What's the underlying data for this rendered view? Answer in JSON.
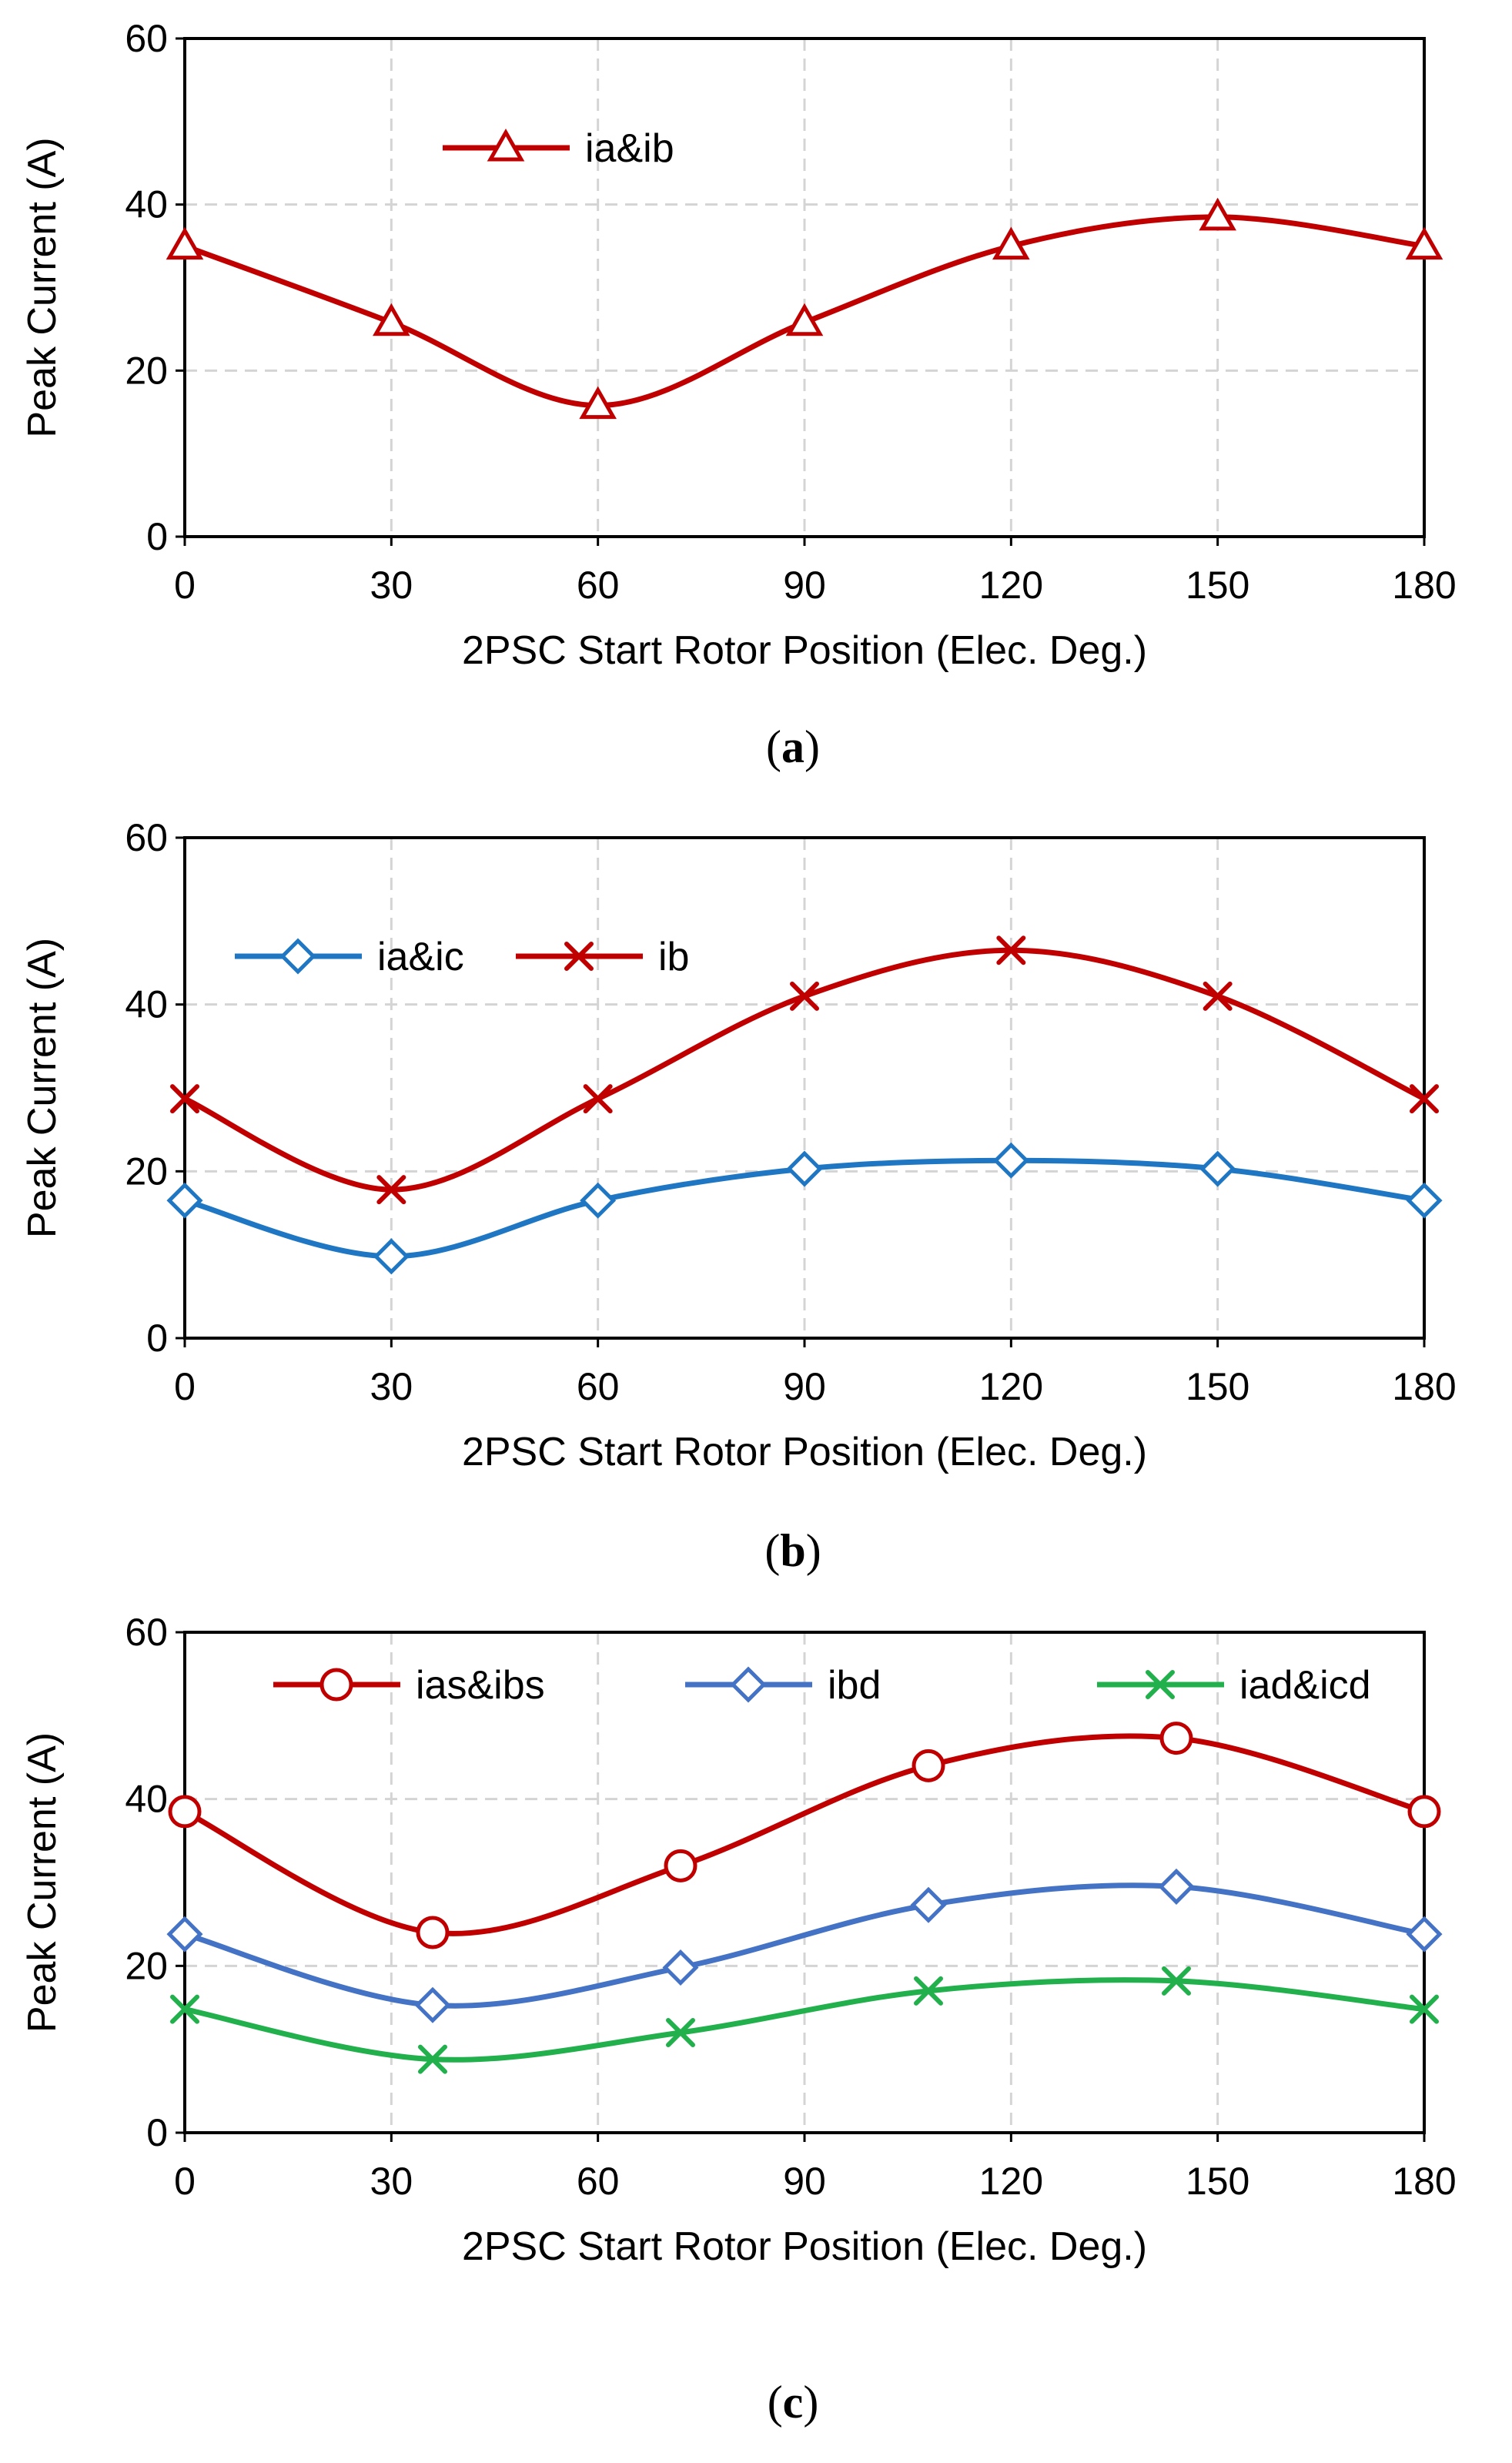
{
  "chart_data": [
    {
      "type": "line",
      "panel": "a",
      "caption": "a",
      "xlabel": "2PSC Start Rotor Position (Elec. Deg.)",
      "ylabel": "Peak Current (A)",
      "xlim": [
        0,
        180
      ],
      "ylim": [
        0,
        60
      ],
      "xticks": [
        0,
        30,
        60,
        90,
        120,
        150,
        180
      ],
      "yticks": [
        0,
        20,
        40,
        60
      ],
      "grid": true,
      "legend_position": "top-left",
      "series": [
        {
          "name": "ia&ib",
          "color": "#c00000",
          "marker": "triangle",
          "x": [
            0,
            30,
            60,
            90,
            120,
            150,
            180
          ],
          "values": [
            35,
            25.8,
            15.8,
            25.8,
            35,
            38.5,
            35
          ]
        }
      ]
    },
    {
      "type": "line",
      "panel": "b",
      "caption": "b",
      "xlabel": "2PSC Start Rotor Position (Elec. Deg.)",
      "ylabel": "Peak Current (A)",
      "xlim": [
        0,
        180
      ],
      "ylim": [
        0,
        60
      ],
      "xticks": [
        0,
        30,
        60,
        90,
        120,
        150,
        180
      ],
      "yticks": [
        0,
        20,
        40,
        60
      ],
      "grid": true,
      "legend_position": "top-left",
      "series": [
        {
          "name": "ia&ic",
          "color": "#1f77c4",
          "marker": "diamond",
          "x": [
            0,
            30,
            60,
            90,
            120,
            150,
            180
          ],
          "values": [
            16.5,
            9.8,
            16.5,
            20.3,
            21.3,
            20.3,
            16.5
          ]
        },
        {
          "name": "ib",
          "color": "#c00000",
          "marker": "x",
          "x": [
            0,
            30,
            60,
            90,
            120,
            150,
            180
          ],
          "values": [
            28.7,
            17.8,
            28.7,
            41,
            46.5,
            41,
            28.7
          ]
        }
      ]
    },
    {
      "type": "line",
      "panel": "c",
      "caption": "c",
      "xlabel": "2PSC Start Rotor Position (Elec. Deg.)",
      "ylabel": "Peak Current (A)",
      "xlim": [
        0,
        180
      ],
      "ylim": [
        0,
        60
      ],
      "xticks": [
        0,
        30,
        60,
        90,
        120,
        150,
        180
      ],
      "yticks": [
        0,
        20,
        40,
        60
      ],
      "grid": true,
      "legend_position": "top",
      "series": [
        {
          "name": "ias&ibs",
          "color": "#c00000",
          "marker": "circle",
          "x": [
            0,
            36,
            72,
            108,
            144,
            180
          ],
          "values": [
            38.5,
            24,
            32,
            44,
            47.3,
            38.5
          ]
        },
        {
          "name": "ibd",
          "color": "#4472c4",
          "marker": "diamond",
          "x": [
            0,
            36,
            72,
            108,
            144,
            180
          ],
          "values": [
            23.8,
            15.3,
            19.8,
            27.3,
            29.5,
            23.8
          ]
        },
        {
          "name": "iad&icd",
          "color": "#21b04b",
          "marker": "x",
          "x": [
            0,
            36,
            72,
            108,
            144,
            180
          ],
          "values": [
            14.8,
            8.8,
            12,
            17,
            18.2,
            14.8
          ]
        }
      ]
    }
  ]
}
